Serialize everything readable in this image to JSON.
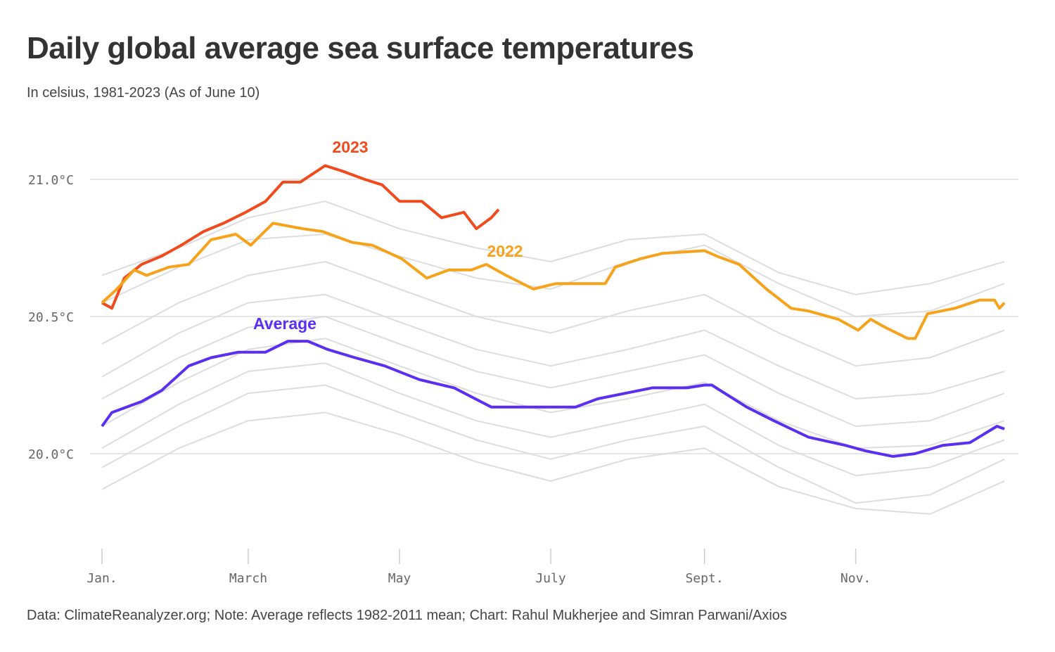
{
  "chart_data": {
    "type": "line",
    "title": "Daily global average sea surface temperatures",
    "subtitle": "In celsius, 1981-2023 (As of June 10)",
    "source": "Data: ClimateReanalyzer.org; Note: Average reflects 1982-2011 mean; Chart: Rahul Mukherjee and Simran Parwani/Axios",
    "xlabel": "",
    "ylabel": "",
    "y_ticks": [
      {
        "value": 21.0,
        "label": "21.0°C"
      },
      {
        "value": 20.5,
        "label": "20.5°C"
      },
      {
        "value": 20.0,
        "label": "20.0°C"
      }
    ],
    "x_ticks": [
      {
        "date": "01-01",
        "label": "Jan."
      },
      {
        "date": "03-01",
        "label": "March"
      },
      {
        "date": "05-01",
        "label": "May"
      },
      {
        "date": "07-01",
        "label": "July"
      },
      {
        "date": "09-01",
        "label": "Sept."
      },
      {
        "date": "11-01",
        "label": "Nov."
      }
    ],
    "ylim": [
      19.7,
      21.1
    ],
    "grid": "horizontal",
    "legend": "direct labels",
    "highlight_series": [
      {
        "name": "2023",
        "color": "#f04a1d",
        "x": [
          "01-01",
          "01-05",
          "01-10",
          "01-17",
          "01-25",
          "02-02",
          "02-11",
          "02-19",
          "02-28",
          "03-08",
          "03-15",
          "03-22",
          "04-01",
          "04-08",
          "04-17",
          "04-24",
          "05-01",
          "05-10",
          "05-18",
          "05-27",
          "06-01",
          "06-07",
          "06-10"
        ],
        "y": [
          20.55,
          20.53,
          20.64,
          20.69,
          20.72,
          20.76,
          20.81,
          20.84,
          20.88,
          20.92,
          20.99,
          20.99,
          21.05,
          21.03,
          21.0,
          20.98,
          20.92,
          20.92,
          20.86,
          20.88,
          20.82,
          20.86,
          20.89
        ]
      },
      {
        "name": "2022",
        "color": "#f7a21b",
        "x": [
          "01-01",
          "01-07",
          "01-14",
          "01-19",
          "01-28",
          "02-05",
          "02-14",
          "02-24",
          "03-02",
          "03-11",
          "03-23",
          "03-31",
          "04-12",
          "04-20",
          "05-02",
          "05-12",
          "05-21",
          "05-30",
          "06-05",
          "06-13",
          "06-24",
          "07-03",
          "07-14",
          "07-23",
          "07-27",
          "08-06",
          "08-15",
          "09-01",
          "09-06",
          "09-15",
          "09-26",
          "10-06",
          "10-13",
          "10-25",
          "11-02",
          "11-07",
          "11-13",
          "11-22",
          "11-25",
          "11-30",
          "12-11",
          "12-21",
          "12-27",
          "12-29",
          "12-31"
        ],
        "y": [
          20.55,
          20.6,
          20.67,
          20.65,
          20.68,
          20.69,
          20.78,
          20.8,
          20.76,
          20.84,
          20.82,
          20.81,
          20.77,
          20.76,
          20.71,
          20.64,
          20.67,
          20.67,
          20.69,
          20.65,
          20.6,
          20.62,
          20.62,
          20.62,
          20.68,
          20.71,
          20.73,
          20.74,
          20.72,
          20.69,
          20.6,
          20.53,
          20.52,
          20.49,
          20.45,
          20.49,
          20.46,
          20.42,
          20.42,
          20.51,
          20.53,
          20.56,
          20.56,
          20.53,
          20.55
        ]
      },
      {
        "name": "Average",
        "color": "#5b2ff0",
        "x": [
          "01-01",
          "01-05",
          "01-17",
          "01-25",
          "02-05",
          "02-14",
          "02-25",
          "03-08",
          "03-17",
          "03-25",
          "04-02",
          "04-13",
          "04-25",
          "05-09",
          "05-23",
          "06-07",
          "06-13",
          "07-11",
          "07-20",
          "07-31",
          "08-11",
          "08-25",
          "09-01",
          "09-04",
          "09-18",
          "09-29",
          "10-13",
          "10-28",
          "11-05",
          "11-16",
          "11-25",
          "12-06",
          "12-17",
          "12-28",
          "12-31"
        ],
        "y": [
          20.1,
          20.15,
          20.19,
          20.23,
          20.32,
          20.35,
          20.37,
          20.37,
          20.41,
          20.41,
          20.38,
          20.35,
          20.32,
          20.27,
          20.24,
          20.17,
          20.17,
          20.17,
          20.2,
          20.22,
          20.24,
          20.24,
          20.25,
          20.25,
          20.17,
          20.12,
          20.06,
          20.03,
          20.01,
          19.99,
          20.0,
          20.03,
          20.04,
          20.1,
          20.09
        ]
      }
    ],
    "other_years_color": "#dddddd",
    "other_years": {
      "x": [
        "01-01",
        "02-01",
        "03-01",
        "04-01",
        "05-01",
        "06-01",
        "07-01",
        "08-01",
        "09-01",
        "10-01",
        "11-01",
        "12-01",
        "12-31"
      ],
      "series": [
        [
          19.87,
          20.02,
          20.12,
          20.15,
          20.07,
          19.97,
          19.9,
          19.98,
          20.02,
          19.88,
          19.8,
          19.78,
          19.9
        ],
        [
          19.95,
          20.1,
          20.22,
          20.25,
          20.15,
          20.05,
          19.98,
          20.05,
          20.1,
          19.95,
          19.82,
          19.85,
          19.98
        ],
        [
          20.02,
          20.18,
          20.3,
          20.33,
          20.22,
          20.12,
          20.06,
          20.12,
          20.18,
          20.03,
          19.92,
          19.95,
          20.05
        ],
        [
          20.1,
          20.26,
          20.38,
          20.42,
          20.32,
          20.22,
          20.15,
          20.2,
          20.26,
          20.12,
          20.02,
          20.03,
          20.12
        ],
        [
          20.2,
          20.35,
          20.46,
          20.5,
          20.4,
          20.3,
          20.24,
          20.3,
          20.36,
          20.22,
          20.1,
          20.12,
          20.22
        ],
        [
          20.28,
          20.44,
          20.55,
          20.58,
          20.48,
          20.38,
          20.32,
          20.38,
          20.45,
          20.32,
          20.2,
          20.22,
          20.3
        ],
        [
          20.4,
          20.55,
          20.65,
          20.7,
          20.6,
          20.5,
          20.44,
          20.52,
          20.58,
          20.44,
          20.32,
          20.35,
          20.45
        ],
        [
          20.55,
          20.68,
          20.78,
          20.8,
          20.72,
          20.64,
          20.6,
          20.7,
          20.76,
          20.62,
          20.5,
          20.52,
          20.62
        ],
        [
          20.65,
          20.75,
          20.86,
          20.92,
          20.82,
          20.75,
          20.7,
          20.78,
          20.8,
          20.66,
          20.58,
          20.62,
          20.7
        ]
      ]
    }
  }
}
